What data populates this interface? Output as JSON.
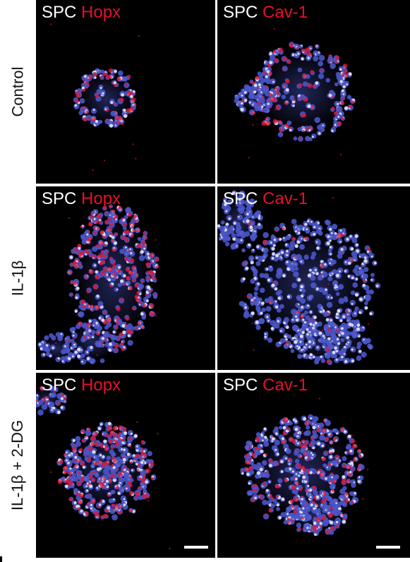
{
  "rows": [
    {
      "label": "Control"
    },
    {
      "label": "IL-1β"
    },
    {
      "label": "IL-1β + 2-DG"
    }
  ],
  "panels": [
    {
      "marker_a": "SPC",
      "marker_b": "Hopx"
    },
    {
      "marker_a": "SPC",
      "marker_b": "Cav-1"
    },
    {
      "marker_a": "SPC",
      "marker_b": "Hopx"
    },
    {
      "marker_a": "SPC",
      "marker_b": "Cav-1"
    },
    {
      "marker_a": "SPC",
      "marker_b": "Hopx"
    },
    {
      "marker_a": "SPC",
      "marker_b": "Cav-1"
    }
  ],
  "colors": {
    "background": "#000000",
    "nuclei": "#4a55c8",
    "spc": "#f2f2f2",
    "marker": "#e8102a",
    "label_white": "#ffffff",
    "label_red": "#e8102a"
  }
}
